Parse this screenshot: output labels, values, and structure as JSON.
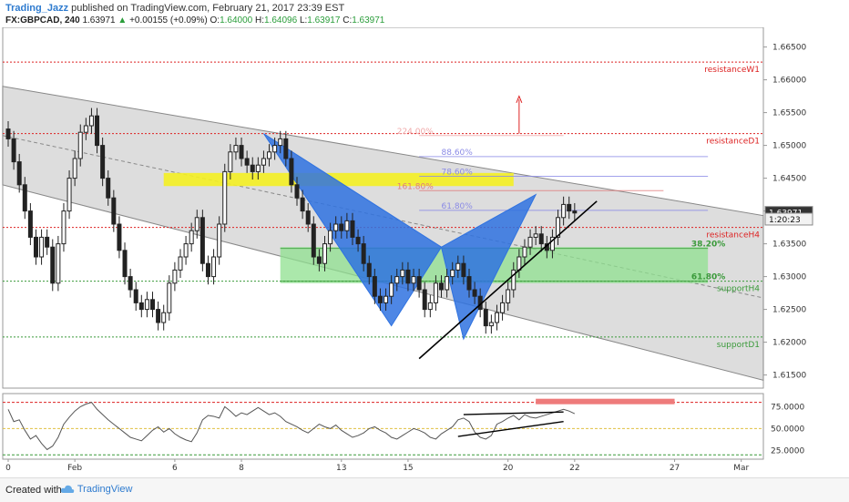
{
  "header": {
    "author": "Trading_Jazz",
    "published": "published on TradingView.com, February 21, 2017 23:39 EST",
    "symbol": "FX:GBPCAD, 240",
    "last": "1.63971",
    "arrow": "▲",
    "change": "+0.00155 (+0.09%)",
    "o_label": "O:",
    "o_val": "1.64000",
    "h_label": "H:",
    "h_val": "1.64096",
    "l_label": "L:",
    "l_val": "1.63917",
    "c_label": "C:",
    "c_val": "1.63971"
  },
  "footer": {
    "created": "Created with",
    "brand": "TradingView"
  },
  "colors": {
    "up": "#2a9d3a",
    "candle": "#222222",
    "channel": "#d2d2d2",
    "pattern": "#2f72e0",
    "yellow": "#f4f022",
    "green": "#8fe08f",
    "resistance": "#d22",
    "support": "#3a9a3a",
    "fib": "#8a8ae6",
    "fib161": "#e07c7c"
  },
  "chart_data": [
    {
      "type": "candlestick",
      "title": "",
      "ylim": [
        1.613,
        1.668
      ],
      "price_axis_ticks": [
        "1.66500",
        "1.66000",
        "1.65500",
        "1.65000",
        "1.64500",
        "1.64000",
        "1.63500",
        "1.63000",
        "1.62500",
        "1.62000",
        "1.61500"
      ],
      "price_tags": [
        {
          "label": "1.63971",
          "value": 1.63971,
          "style": "dark"
        },
        {
          "label": "1:20:23",
          "value": 1.6387,
          "style": "light"
        }
      ],
      "time_axis_ticks": [
        {
          "label": "0",
          "bar": 0
        },
        {
          "label": "Feb",
          "bar": 12
        },
        {
          "label": "6",
          "bar": 30
        },
        {
          "label": "8",
          "bar": 42
        },
        {
          "label": "13",
          "bar": 60
        },
        {
          "label": "15",
          "bar": 72
        },
        {
          "label": "20",
          "bar": 90
        },
        {
          "label": "22",
          "bar": 102
        },
        {
          "label": "27",
          "bar": 120
        },
        {
          "label": "Mar",
          "bar": 132
        }
      ],
      "close_series": [
        1.651,
        1.6475,
        1.644,
        1.64,
        1.636,
        1.633,
        1.636,
        1.6345,
        1.629,
        1.635,
        1.64,
        1.645,
        1.648,
        1.652,
        1.653,
        1.6545,
        1.65,
        1.645,
        1.642,
        1.638,
        1.634,
        1.63,
        1.628,
        1.626,
        1.625,
        1.6265,
        1.625,
        1.623,
        1.6245,
        1.629,
        1.631,
        1.633,
        1.635,
        1.637,
        1.639,
        1.632,
        1.63,
        1.633,
        1.638,
        1.646,
        1.649,
        1.65,
        1.648,
        1.647,
        1.646,
        1.647,
        1.648,
        1.649,
        1.65,
        1.651,
        1.648,
        1.644,
        1.642,
        1.64,
        1.638,
        1.633,
        1.632,
        1.635,
        1.637,
        1.638,
        1.637,
        1.6385,
        1.636,
        1.635,
        1.632,
        1.63,
        1.627,
        1.626,
        1.627,
        1.629,
        1.63,
        1.631,
        1.629,
        1.63,
        1.628,
        1.625,
        1.626,
        1.629,
        1.628,
        1.63,
        1.631,
        1.632,
        1.63,
        1.628,
        1.627,
        1.625,
        1.6225,
        1.623,
        1.6245,
        1.626,
        1.628,
        1.631,
        1.633,
        1.6345,
        1.636,
        1.6365,
        1.635,
        1.634,
        1.636,
        1.639,
        1.641,
        1.64,
        1.6397
      ],
      "horizontal_levels": [
        {
          "label": "resistanceW1",
          "value": 1.6627,
          "color": "#d22"
        },
        {
          "label": "resistanceD1",
          "value": 1.6518,
          "color": "#d22"
        },
        {
          "label": "resistanceH4",
          "value": 1.6375,
          "color": "#d22"
        },
        {
          "label": "supportH4",
          "value": 1.6293,
          "color": "#3a9a3a"
        },
        {
          "label": "supportD1",
          "value": 1.6208,
          "color": "#3a9a3a"
        }
      ],
      "fib_levels": [
        {
          "label": "224.00%",
          "value": 1.6515,
          "color": "#f0a8a8"
        },
        {
          "label": "88.60%",
          "value": 1.6483,
          "color": "#8a8ae6"
        },
        {
          "label": "78.60%",
          "value": 1.6453,
          "color": "#8a8ae6"
        },
        {
          "label": "161.80%",
          "value": 1.6431,
          "color": "#e07c7c"
        },
        {
          "label": "61.80%",
          "value": 1.6401,
          "color": "#8a8ae6"
        },
        {
          "label": "38.20%",
          "value": 1.6343,
          "color": "#3a9a3a"
        },
        {
          "label": "61.80%",
          "value": 1.6293,
          "color": "#3a9a3a"
        }
      ],
      "zones": [
        {
          "name": "yellow",
          "from": 1.6438,
          "to": 1.6458
        },
        {
          "name": "green",
          "from": 1.629,
          "to": 1.6345
        }
      ]
    },
    {
      "type": "line",
      "title": "",
      "ylim": [
        15,
        90
      ],
      "axis_ticks": [
        "75.0000",
        "50.0000",
        "25.0000"
      ],
      "levels": [
        {
          "value": 80,
          "color": "#d22"
        },
        {
          "value": 50,
          "color": "#e0c040"
        },
        {
          "value": 20,
          "color": "#3a9a3a"
        }
      ],
      "values": [
        72,
        58,
        60,
        48,
        38,
        42,
        33,
        26,
        30,
        40,
        55,
        63,
        70,
        75,
        78,
        80,
        72,
        66,
        60,
        55,
        50,
        45,
        40,
        38,
        36,
        42,
        48,
        52,
        46,
        50,
        44,
        40,
        37,
        35,
        45,
        60,
        65,
        64,
        62,
        75,
        70,
        64,
        68,
        66,
        70,
        74,
        70,
        66,
        68,
        64,
        58,
        55,
        52,
        48,
        45,
        50,
        55,
        52,
        50,
        54,
        48,
        44,
        40,
        42,
        45,
        50,
        52,
        48,
        45,
        40,
        38,
        42,
        46,
        50,
        48,
        45,
        40,
        38,
        44,
        48,
        52,
        60,
        62,
        58,
        46,
        40,
        38,
        42,
        55,
        58,
        62,
        65,
        60,
        66,
        63,
        62,
        64,
        66,
        68,
        70,
        72,
        70,
        67
      ]
    }
  ]
}
